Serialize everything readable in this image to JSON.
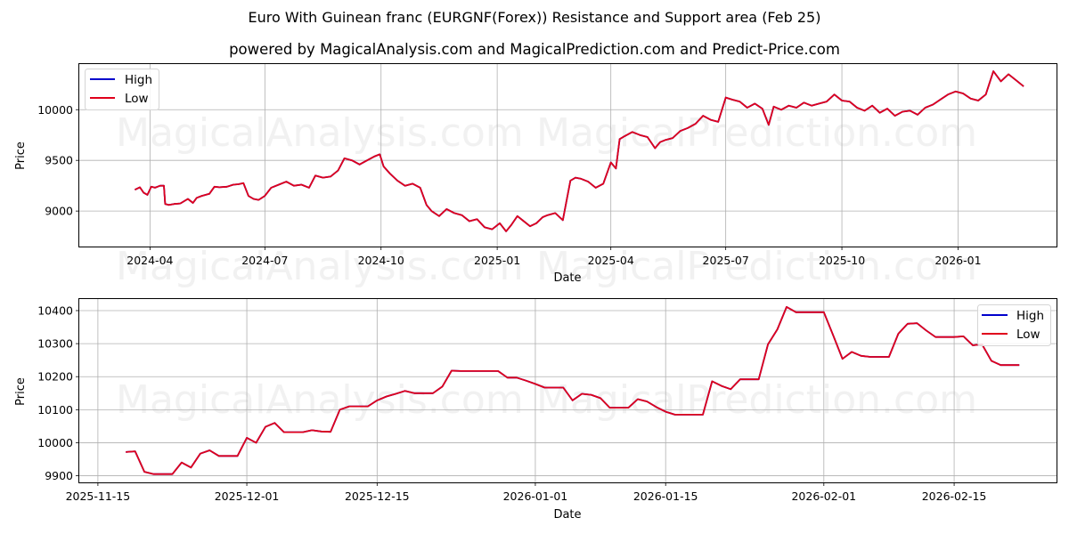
{
  "header": {
    "title": "Euro With Guinean franc (EURGNF(Forex)) Resistance and Support area (Feb 25)",
    "subtitle": "powered by MagicalAnalysis.com and MagicalPrediction.com and Predict-Price.com"
  },
  "watermarks": [
    "MagicalAnalysis.com",
    "MagicalPrediction.com"
  ],
  "colors": {
    "high": "#0000cc",
    "low": "#e0001b",
    "grid": "#b0b0b0",
    "watermark": "#e6e6e6"
  },
  "chart_data": [
    {
      "type": "line",
      "id": "top",
      "title": "",
      "xlabel": "Date",
      "ylabel": "Price",
      "grid": true,
      "legend": {
        "position": "upper left",
        "entries": [
          "High",
          "Low"
        ]
      },
      "ylim": [
        8650,
        10450
      ],
      "yticks": [
        9000,
        9500,
        10000
      ],
      "xticks": [
        "2024-04",
        "2024-07",
        "2024-10",
        "2025-01",
        "2025-04",
        "2025-07",
        "2025-10",
        "2026-01"
      ],
      "xrange": [
        "2024-02-05",
        "2026-03-20"
      ],
      "series": [
        {
          "name": "Low",
          "x": [
            "2024-03-20",
            "2024-03-24",
            "2024-03-27",
            "2024-03-30",
            "2024-04-02",
            "2024-04-05",
            "2024-04-09",
            "2024-04-12",
            "2024-04-13",
            "2024-04-16",
            "2024-04-20",
            "2024-04-25",
            "2024-05-01",
            "2024-05-05",
            "2024-05-08",
            "2024-05-12",
            "2024-05-18",
            "2024-05-22",
            "2024-05-26",
            "2024-06-01",
            "2024-06-06",
            "2024-06-10",
            "2024-06-14",
            "2024-06-18",
            "2024-06-22",
            "2024-06-26",
            "2024-07-01",
            "2024-07-06",
            "2024-07-12",
            "2024-07-18",
            "2024-07-24",
            "2024-07-30",
            "2024-08-05",
            "2024-08-10",
            "2024-08-16",
            "2024-08-22",
            "2024-08-28",
            "2024-09-02",
            "2024-09-08",
            "2024-09-14",
            "2024-09-20",
            "2024-09-26",
            "2024-09-30",
            "2024-10-03",
            "2024-10-08",
            "2024-10-14",
            "2024-10-20",
            "2024-10-26",
            "2024-11-01",
            "2024-11-06",
            "2024-11-10",
            "2024-11-16",
            "2024-11-22",
            "2024-11-28",
            "2024-12-04",
            "2024-12-10",
            "2024-12-16",
            "2024-12-22",
            "2024-12-28",
            "2025-01-03",
            "2025-01-08",
            "2025-01-12",
            "2025-01-17",
            "2025-01-22",
            "2025-01-27",
            "2025-02-01",
            "2025-02-06",
            "2025-02-10",
            "2025-02-16",
            "2025-02-22",
            "2025-02-28",
            "2025-03-04",
            "2025-03-08",
            "2025-03-14",
            "2025-03-20",
            "2025-03-26",
            "2025-04-01",
            "2025-04-05",
            "2025-04-08",
            "2025-04-12",
            "2025-04-18",
            "2025-04-24",
            "2025-04-30",
            "2025-05-06",
            "2025-05-10",
            "2025-05-14",
            "2025-05-20",
            "2025-05-26",
            "2025-06-01",
            "2025-06-07",
            "2025-06-13",
            "2025-06-19",
            "2025-06-25",
            "2025-07-01",
            "2025-07-06",
            "2025-07-12",
            "2025-07-18",
            "2025-07-24",
            "2025-07-30",
            "2025-08-04",
            "2025-08-08",
            "2025-08-14",
            "2025-08-20",
            "2025-08-26",
            "2025-09-01",
            "2025-09-07",
            "2025-09-13",
            "2025-09-19",
            "2025-09-25",
            "2025-10-01",
            "2025-10-07",
            "2025-10-13",
            "2025-10-19",
            "2025-10-25",
            "2025-10-31",
            "2025-11-06",
            "2025-11-12",
            "2025-11-18",
            "2025-11-24",
            "2025-11-30",
            "2025-12-06",
            "2025-12-12",
            "2025-12-18",
            "2025-12-24",
            "2025-12-30",
            "2026-01-05",
            "2026-01-11",
            "2026-01-17",
            "2026-01-23",
            "2026-01-29",
            "2026-02-04",
            "2026-02-10",
            "2026-02-16",
            "2026-02-22"
          ],
          "values": [
            9210,
            9235,
            9180,
            9160,
            9240,
            9230,
            9250,
            9250,
            9070,
            9060,
            9070,
            9075,
            9120,
            9080,
            9130,
            9150,
            9170,
            9240,
            9235,
            9240,
            9260,
            9265,
            9275,
            9150,
            9120,
            9110,
            9150,
            9230,
            9260,
            9290,
            9250,
            9260,
            9230,
            9350,
            9330,
            9340,
            9400,
            9520,
            9500,
            9460,
            9500,
            9540,
            9560,
            9440,
            9370,
            9300,
            9250,
            9270,
            9230,
            9060,
            9000,
            8950,
            9020,
            8980,
            8960,
            8900,
            8920,
            8840,
            8820,
            8880,
            8800,
            8860,
            8950,
            8900,
            8850,
            8880,
            8940,
            8960,
            8980,
            8910,
            9300,
            9330,
            9320,
            9290,
            9230,
            9270,
            9480,
            9420,
            9710,
            9740,
            9780,
            9750,
            9730,
            9620,
            9680,
            9700,
            9720,
            9790,
            9820,
            9860,
            9940,
            9900,
            9880,
            10120,
            10100,
            10080,
            10020,
            10060,
            10010,
            9850,
            10030,
            10000,
            10040,
            10020,
            10070,
            10040,
            10060,
            10080,
            10150,
            10090,
            10080,
            10020,
            9990,
            10040,
            9970,
            10010,
            9940,
            9980,
            9990,
            9950,
            10020,
            10050,
            10100,
            10150,
            10180,
            10160,
            10110,
            10090,
            10150,
            10380,
            10280,
            10350,
            10290,
            10230
          ],
          "color": "#e0001b"
        },
        {
          "name": "High",
          "note": "nearly identical to Low; visible separation only near 2024-04-12",
          "color": "#0000cc"
        }
      ]
    },
    {
      "type": "line",
      "id": "bottom",
      "title": "",
      "xlabel": "Date",
      "ylabel": "Price",
      "grid": true,
      "legend": {
        "position": "upper right",
        "entries": [
          "High",
          "Low"
        ]
      },
      "ylim": [
        9880,
        10435
      ],
      "yticks": [
        9900,
        10000,
        10100,
        10200,
        10300,
        10400
      ],
      "xticks": [
        "2025-11-15",
        "2025-12-01",
        "2025-12-15",
        "2026-01-01",
        "2026-01-15",
        "2026-02-01",
        "2026-02-15"
      ],
      "xrange": [
        "2025-11-13",
        "2026-02-26"
      ],
      "series": [
        {
          "name": "Low",
          "x": [
            "2025-11-18",
            "2025-11-19",
            "2025-11-20",
            "2025-11-21",
            "2025-11-22",
            "2025-11-23",
            "2025-11-24",
            "2025-11-25",
            "2025-11-26",
            "2025-11-27",
            "2025-11-28",
            "2025-11-29",
            "2025-11-30",
            "2025-12-01",
            "2025-12-02",
            "2025-12-03",
            "2025-12-04",
            "2025-12-05",
            "2025-12-06",
            "2025-12-07",
            "2025-12-08",
            "2025-12-09",
            "2025-12-10",
            "2025-12-11",
            "2025-12-12",
            "2025-12-13",
            "2025-12-14",
            "2025-12-15",
            "2025-12-16",
            "2025-12-17",
            "2025-12-18",
            "2025-12-19",
            "2025-12-20",
            "2025-12-21",
            "2025-12-22",
            "2025-12-23",
            "2025-12-24",
            "2025-12-25",
            "2025-12-26",
            "2025-12-27",
            "2025-12-28",
            "2025-12-29",
            "2025-12-30",
            "2025-12-31",
            "2026-01-01",
            "2026-01-02",
            "2026-01-03",
            "2026-01-04",
            "2026-01-05",
            "2026-01-06",
            "2026-01-07",
            "2026-01-08",
            "2026-01-09",
            "2026-01-10",
            "2026-01-11",
            "2026-01-12",
            "2026-01-13",
            "2026-01-14",
            "2026-01-15",
            "2026-01-16",
            "2026-01-17",
            "2026-01-18",
            "2026-01-19",
            "2026-01-20",
            "2026-01-21",
            "2026-01-22",
            "2026-01-23",
            "2026-01-24",
            "2026-01-25",
            "2026-01-26",
            "2026-01-27",
            "2026-01-28",
            "2026-01-29",
            "2026-01-30",
            "2026-01-31",
            "2026-02-01",
            "2026-02-02",
            "2026-02-03",
            "2026-02-04",
            "2026-02-05",
            "2026-02-06",
            "2026-02-07",
            "2026-02-08",
            "2026-02-09",
            "2026-02-10",
            "2026-02-11",
            "2026-02-12",
            "2026-02-13",
            "2026-02-14",
            "2026-02-15",
            "2026-02-16",
            "2026-02-17",
            "2026-02-18",
            "2026-02-19",
            "2026-02-20",
            "2026-02-21",
            "2026-02-22"
          ],
          "values": [
            9972,
            9974,
            9912,
            9905,
            9905,
            9905,
            9940,
            9925,
            9967,
            9977,
            9960,
            9960,
            9960,
            10015,
            10000,
            10048,
            10060,
            10032,
            10032,
            10032,
            10038,
            10034,
            10033,
            10100,
            10110,
            10110,
            10110,
            10128,
            10140,
            10148,
            10157,
            10150,
            10150,
            10150,
            10170,
            10218,
            10217,
            10217,
            10217,
            10217,
            10217,
            10197,
            10197,
            10188,
            10178,
            10167,
            10167,
            10167,
            10128,
            10148,
            10145,
            10135,
            10106,
            10106,
            10106,
            10132,
            10125,
            10108,
            10094,
            10085,
            10085,
            10085,
            10085,
            10186,
            10172,
            10162,
            10192,
            10192,
            10192,
            10298,
            10343,
            10411,
            10395,
            10395,
            10395,
            10395,
            10325,
            10254,
            10275,
            10263,
            10260,
            10260,
            10260,
            10330,
            10360,
            10362,
            10340,
            10320,
            10320,
            10320,
            10322,
            10295,
            10298,
            10248,
            10235,
            10235,
            10235
          ],
          "color": "#e0001b"
        },
        {
          "name": "High",
          "note": "overlaps Low; slight divergence near 2026-01-19",
          "color": "#0000cc"
        }
      ]
    }
  ]
}
